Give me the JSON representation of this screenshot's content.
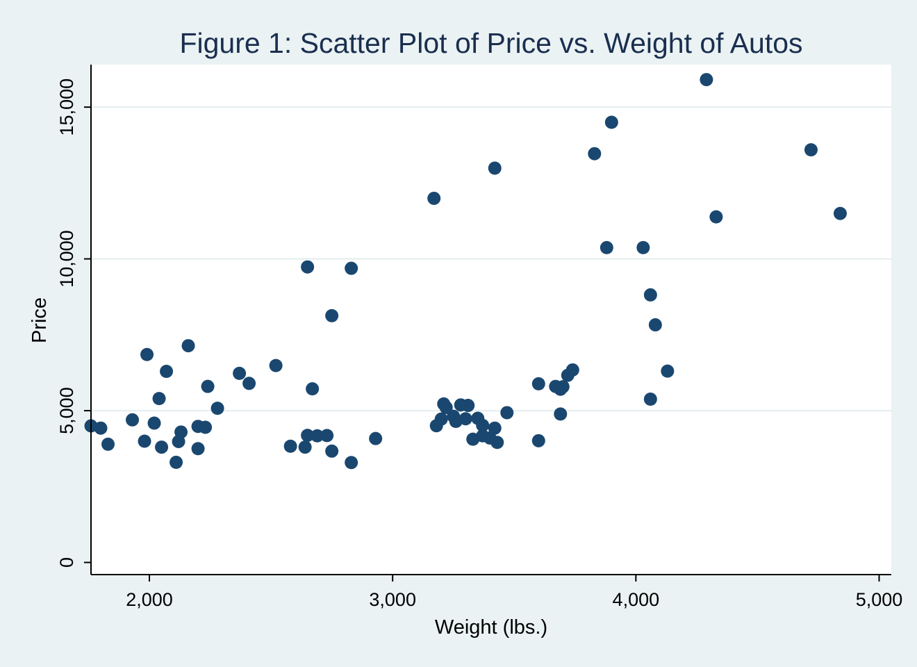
{
  "chart_data": {
    "type": "scatter",
    "title": "Figure 1: Scatter Plot of Price vs. Weight of Autos",
    "xlabel": "Weight (lbs.)",
    "ylabel": "Price",
    "xlim": [
      1760,
      5050
    ],
    "ylim": [
      -400,
      16400
    ],
    "x_ticks": [
      2000,
      3000,
      4000,
      5000
    ],
    "x_tick_labels": [
      "2,000",
      "3,000",
      "4,000",
      "5,000"
    ],
    "y_ticks": [
      0,
      5000,
      10000,
      15000
    ],
    "y_tick_labels": [
      "0",
      "5,000",
      "10,000",
      "15,000"
    ],
    "grid": true,
    "colors": {
      "background": "#eaf2f3",
      "plot": "#ffffff",
      "marker": "#1a476f",
      "title": "#1a2e4f"
    },
    "points": [
      {
        "x": 1760,
        "y": 4499
      },
      {
        "x": 1800,
        "y": 4425
      },
      {
        "x": 1830,
        "y": 3895
      },
      {
        "x": 1930,
        "y": 4697
      },
      {
        "x": 1980,
        "y": 3995
      },
      {
        "x": 1990,
        "y": 6850
      },
      {
        "x": 2020,
        "y": 4589
      },
      {
        "x": 2040,
        "y": 5399
      },
      {
        "x": 2050,
        "y": 3798
      },
      {
        "x": 2070,
        "y": 6295
      },
      {
        "x": 2110,
        "y": 3299
      },
      {
        "x": 2120,
        "y": 3984
      },
      {
        "x": 2130,
        "y": 4296
      },
      {
        "x": 2160,
        "y": 7140
      },
      {
        "x": 2200,
        "y": 4482
      },
      {
        "x": 2200,
        "y": 3748
      },
      {
        "x": 2230,
        "y": 4453
      },
      {
        "x": 2240,
        "y": 5799
      },
      {
        "x": 2280,
        "y": 5079
      },
      {
        "x": 2370,
        "y": 6229
      },
      {
        "x": 2410,
        "y": 5899
      },
      {
        "x": 2520,
        "y": 6486
      },
      {
        "x": 2580,
        "y": 3829
      },
      {
        "x": 2640,
        "y": 3799
      },
      {
        "x": 2650,
        "y": 4187
      },
      {
        "x": 2650,
        "y": 9735
      },
      {
        "x": 2670,
        "y": 5719
      },
      {
        "x": 2690,
        "y": 4172
      },
      {
        "x": 2730,
        "y": 4181
      },
      {
        "x": 2750,
        "y": 3667
      },
      {
        "x": 2750,
        "y": 8129
      },
      {
        "x": 2830,
        "y": 3291
      },
      {
        "x": 2830,
        "y": 9690
      },
      {
        "x": 2930,
        "y": 4082
      },
      {
        "x": 3170,
        "y": 11995
      },
      {
        "x": 3180,
        "y": 4504
      },
      {
        "x": 3200,
        "y": 4723
      },
      {
        "x": 3210,
        "y": 5222
      },
      {
        "x": 3220,
        "y": 5104
      },
      {
        "x": 3250,
        "y": 4816
      },
      {
        "x": 3260,
        "y": 4647
      },
      {
        "x": 3280,
        "y": 5189
      },
      {
        "x": 3300,
        "y": 4733
      },
      {
        "x": 3310,
        "y": 5172
      },
      {
        "x": 3330,
        "y": 4060
      },
      {
        "x": 3350,
        "y": 4749
      },
      {
        "x": 3370,
        "y": 4516
      },
      {
        "x": 3370,
        "y": 4172
      },
      {
        "x": 3400,
        "y": 4099
      },
      {
        "x": 3420,
        "y": 4425
      },
      {
        "x": 3420,
        "y": 12990
      },
      {
        "x": 3430,
        "y": 3955
      },
      {
        "x": 3470,
        "y": 4934
      },
      {
        "x": 3600,
        "y": 5886
      },
      {
        "x": 3600,
        "y": 4010
      },
      {
        "x": 3670,
        "y": 5798
      },
      {
        "x": 3690,
        "y": 5705
      },
      {
        "x": 3690,
        "y": 4890
      },
      {
        "x": 3700,
        "y": 5788
      },
      {
        "x": 3720,
        "y": 6165
      },
      {
        "x": 3740,
        "y": 6342
      },
      {
        "x": 3830,
        "y": 13466
      },
      {
        "x": 3880,
        "y": 10371
      },
      {
        "x": 3900,
        "y": 14500
      },
      {
        "x": 4030,
        "y": 10372
      },
      {
        "x": 4060,
        "y": 8814
      },
      {
        "x": 4060,
        "y": 5379
      },
      {
        "x": 4080,
        "y": 7827
      },
      {
        "x": 4130,
        "y": 6303
      },
      {
        "x": 4290,
        "y": 15906
      },
      {
        "x": 4330,
        "y": 11385
      },
      {
        "x": 4720,
        "y": 13594
      },
      {
        "x": 4840,
        "y": 11497
      }
    ]
  }
}
